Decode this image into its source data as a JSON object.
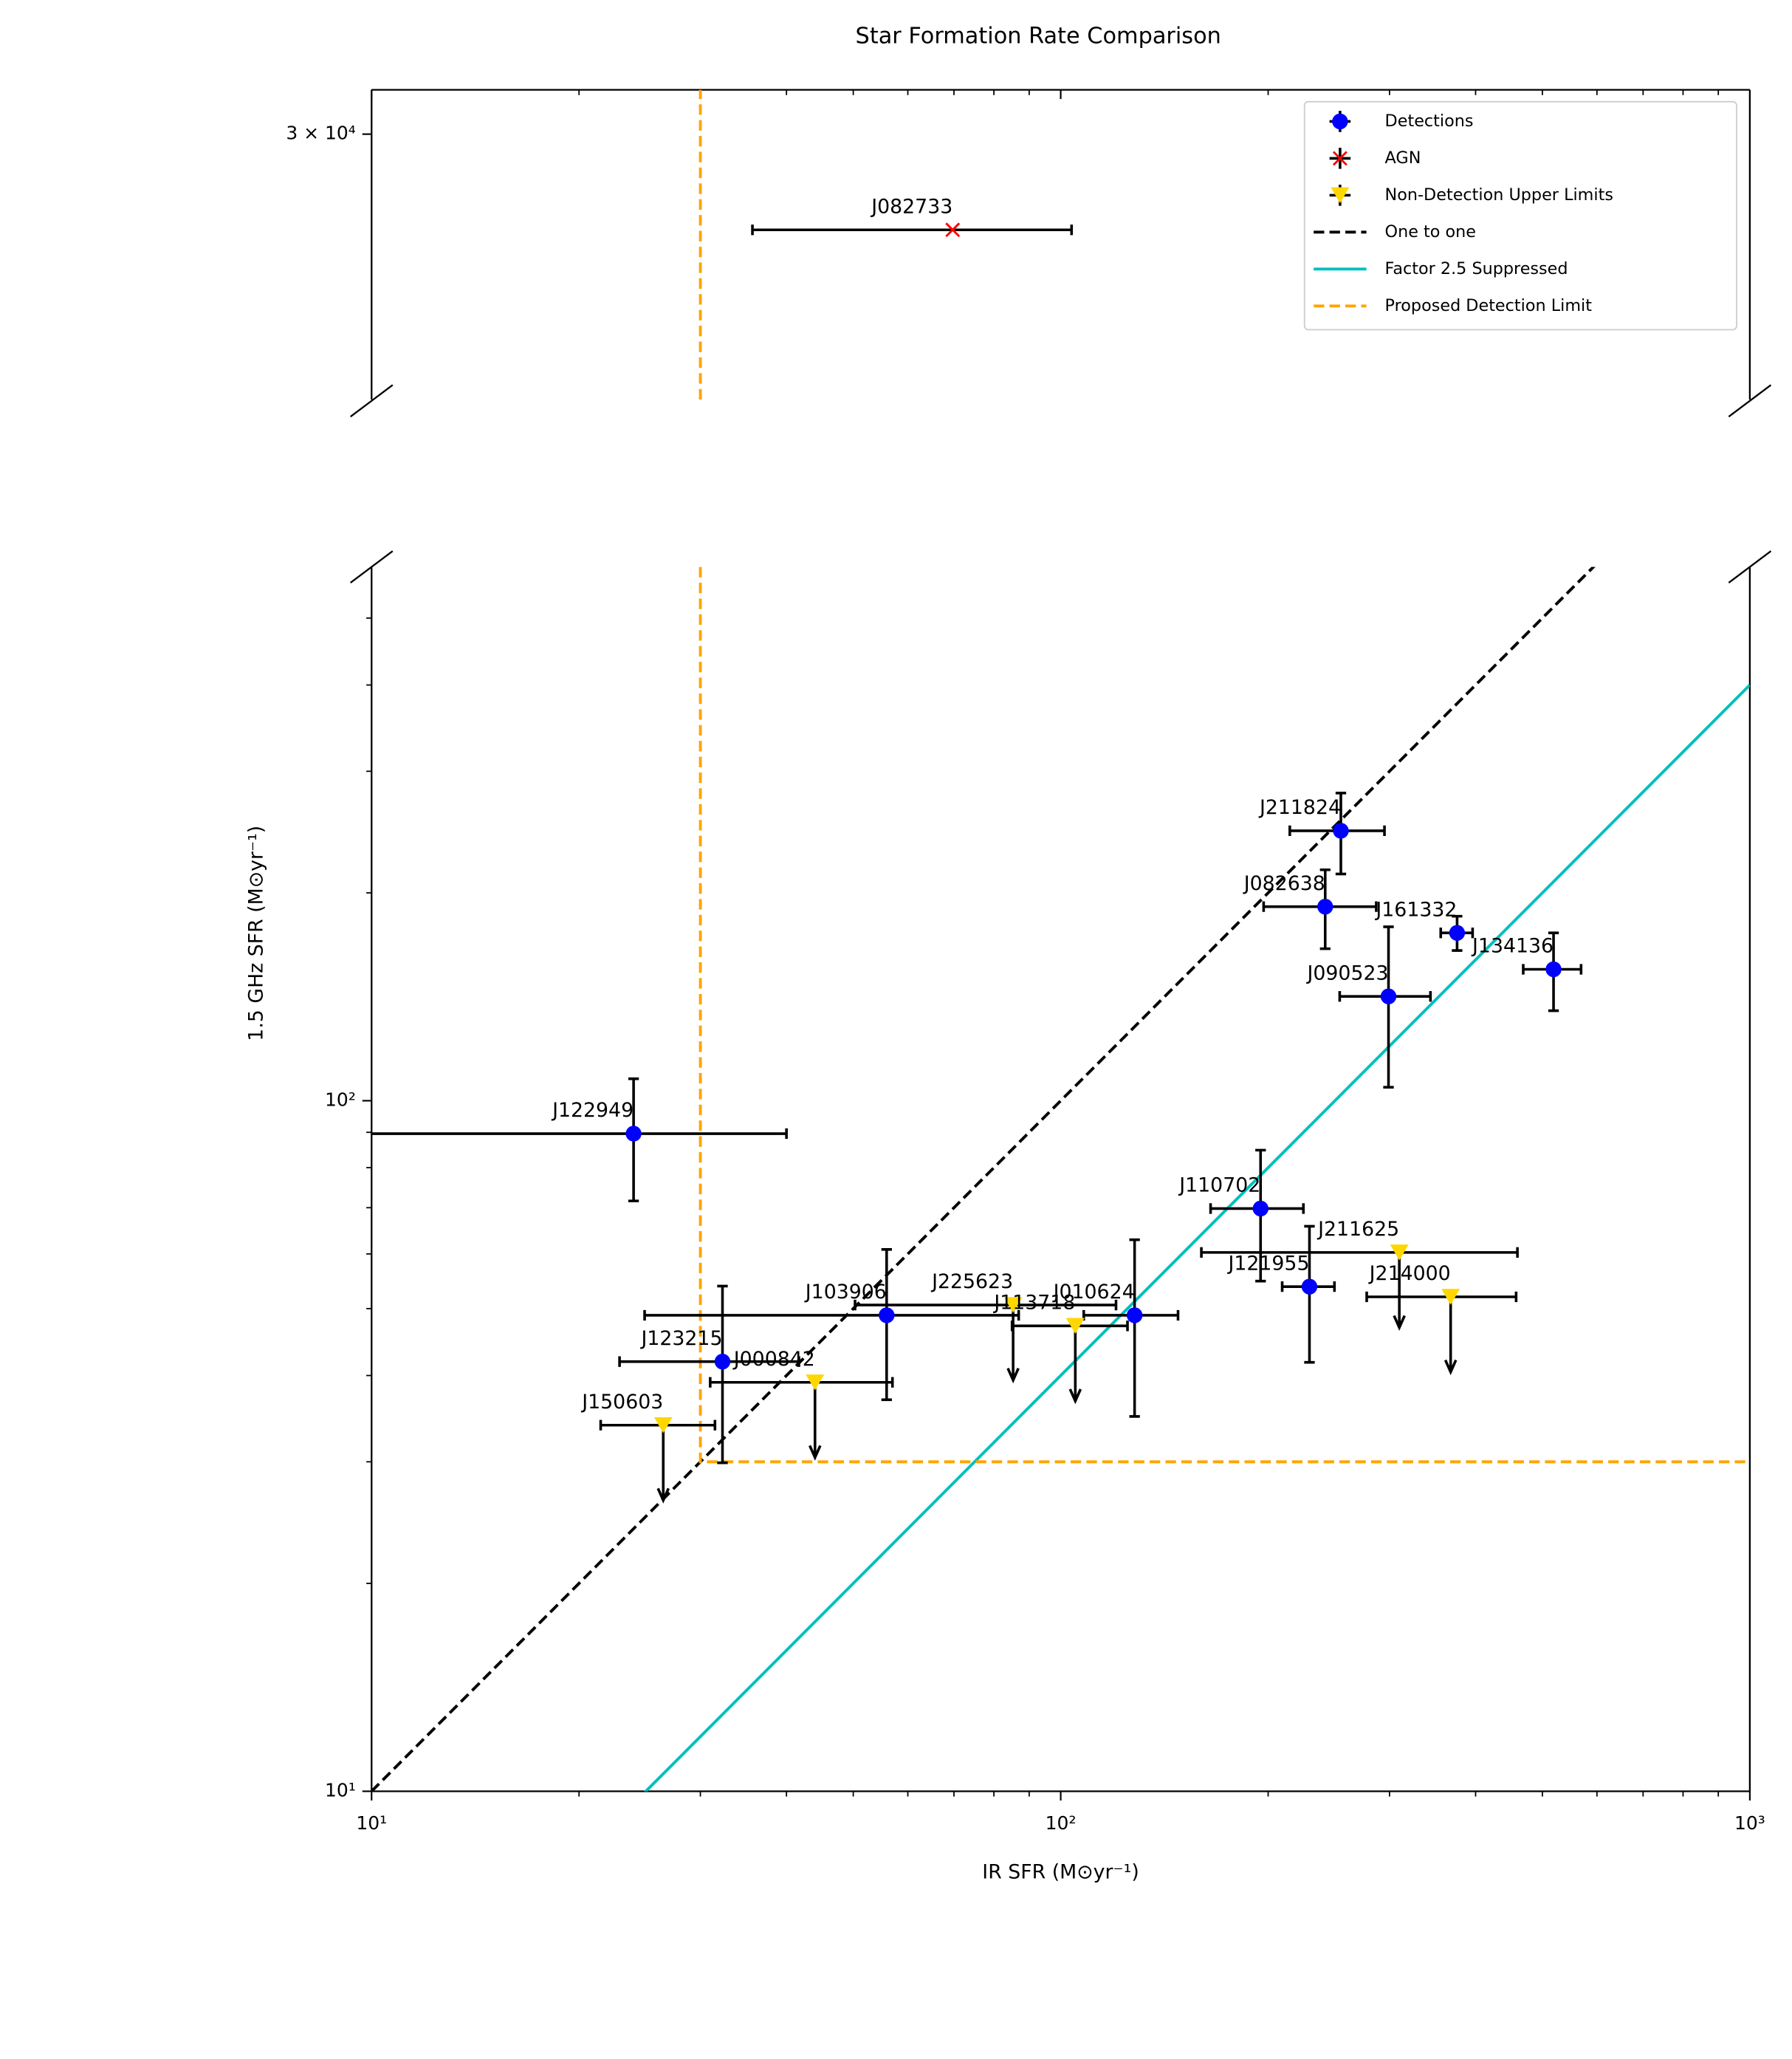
{
  "chart_data": [
    {
      "type": "scatter",
      "title": "Star Formation Rate Comparison",
      "xscale": "log",
      "yscale": "log",
      "xlim": [
        10,
        1000
      ],
      "ylim": [
        22400,
        31500
      ],
      "yticks": [
        {
          "value": 30000,
          "label": "3 × 10⁴"
        }
      ],
      "series": [
        {
          "name": "AGN",
          "kind": "errorbar",
          "marker": "x",
          "color": "#ff0000",
          "x": [
            69.7
          ],
          "values": [
            27000
          ],
          "xerr": [
            34
          ],
          "labels": [
            "J082733"
          ]
        },
        {
          "kind": "line",
          "linestyle": "dashed",
          "color": "#ffa500",
          "x": [
            30,
            30
          ],
          "values": [
            22400,
            31500
          ]
        }
      ]
    },
    {
      "type": "scatter",
      "xscale": "log",
      "yscale": "log",
      "xlabel": "IR SFR (M⊙yr⁻¹)",
      "ylabel": "1.5 GHz SFR (M⊙yr⁻¹)",
      "xlim": [
        10,
        1000
      ],
      "ylim": [
        10,
        593
      ],
      "xticks": [
        {
          "value": 10,
          "label": "10¹"
        },
        {
          "value": 100,
          "label": "10²"
        },
        {
          "value": 1000,
          "label": "10³"
        }
      ],
      "yticks": [
        {
          "value": 10,
          "label": "10¹"
        },
        {
          "value": 100,
          "label": "10²"
        }
      ],
      "legend": "upper right",
      "series": [
        {
          "name": "Detections",
          "kind": "errorbar",
          "marker": "o",
          "color": "#0000ff",
          "labels": [
            "J122949",
            "J123215",
            "J103906",
            "J010624",
            "J110702",
            "J121955",
            "J211824",
            "J082638",
            "J161332",
            "J134136",
            "J090523"
          ],
          "x": [
            24.0,
            32.3,
            55.9,
            128,
            195,
            229.6,
            255,
            242,
            376,
            519,
            299
          ],
          "xerr": [
            16,
            9.4,
            31,
            20,
            30,
            20,
            40,
            45,
            20,
            50,
            45
          ],
          "values": [
            89.6,
            41.9,
            48.9,
            48.9,
            69.8,
            53.8,
            246,
            191,
            175,
            155,
            141.6
          ],
          "yerr": [
            18,
            12,
            12,
            14,
            15,
            12,
            33,
            25,
            10,
            20,
            37
          ]
        },
        {
          "name": "AGN",
          "kind": "legend-only",
          "marker": "x",
          "color": "#ff0000"
        },
        {
          "name": "Non-Detection Upper Limits",
          "kind": "errorbar",
          "marker": "v",
          "upper_limit": true,
          "color": "#ffd700",
          "labels": [
            "J150603",
            "J000842",
            "J225623",
            "J113718",
            "J211625",
            "J214000"
          ],
          "x": [
            26.5,
            44,
            85.3,
            105,
            310,
            368
          ],
          "xerr": [
            5,
            13,
            35,
            20,
            150,
            90
          ],
          "values": [
            33.9,
            39.1,
            50.6,
            47.2,
            60.3,
            52
          ]
        },
        {
          "name": "One to one",
          "kind": "line",
          "linestyle": "dashed",
          "color": "#000000",
          "x": [
            10,
            1000
          ],
          "values": [
            10,
            1000
          ]
        },
        {
          "name": "Factor 2.5 Suppressed",
          "kind": "line",
          "linestyle": "solid",
          "color": "#00bfbf",
          "x": [
            10,
            1000
          ],
          "values": [
            4,
            400
          ]
        },
        {
          "name": "Proposed Detection Limit",
          "kind": "line",
          "linestyle": "dashed",
          "color": "#ffa500",
          "x": [
            30,
            30,
            1000
          ],
          "values": [
            593,
            30,
            30
          ]
        }
      ]
    }
  ]
}
